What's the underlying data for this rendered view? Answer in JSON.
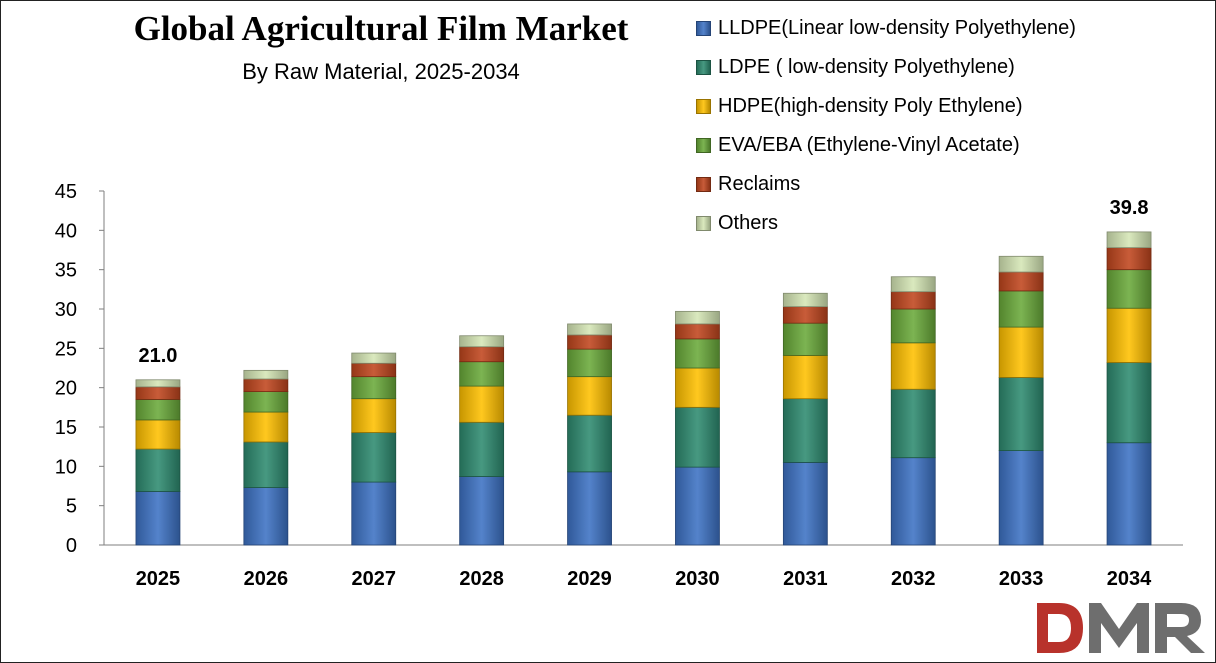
{
  "chart_data": {
    "type": "bar",
    "stacked": true,
    "title": "Global Agricultural Film Market",
    "subtitle": "By Raw Material, 2025-2034",
    "categories": [
      "2025",
      "2026",
      "2027",
      "2028",
      "2029",
      "2030",
      "2031",
      "2032",
      "2033",
      "2034"
    ],
    "ylim": [
      0,
      45
    ],
    "yticks": [
      0,
      5,
      10,
      15,
      20,
      25,
      30,
      35,
      40,
      45
    ],
    "series": [
      {
        "name": "LLDPE(Linear low-density Polyethylene)",
        "color": "#3d72c4",
        "values": [
          6.8,
          7.3,
          8.0,
          8.7,
          9.3,
          9.9,
          10.5,
          11.1,
          12.0,
          13.0
        ]
      },
      {
        "name": "LDPE ( low-density Polyethylene)",
        "color": "#2e8b70",
        "values": [
          5.4,
          5.8,
          6.3,
          6.9,
          7.2,
          7.6,
          8.1,
          8.7,
          9.3,
          10.2
        ]
      },
      {
        "name": "HDPE(high-density Poly Ethylene)",
        "color": "#ffc000",
        "values": [
          3.7,
          3.8,
          4.3,
          4.6,
          4.9,
          5.0,
          5.5,
          5.9,
          6.4,
          6.9
        ]
      },
      {
        "name": "EVA/EBA (Ethylene-Vinyl Acetate)",
        "color": "#6aaa3a",
        "values": [
          2.6,
          2.6,
          2.8,
          3.1,
          3.5,
          3.7,
          4.1,
          4.3,
          4.6,
          4.9
        ]
      },
      {
        "name": "Reclaims",
        "color": "#c0461e",
        "values": [
          1.6,
          1.6,
          1.7,
          1.9,
          1.8,
          1.9,
          2.1,
          2.2,
          2.4,
          2.8
        ]
      },
      {
        "name": "Others",
        "color": "#d5e6b5",
        "values": [
          0.9,
          1.1,
          1.3,
          1.4,
          1.4,
          1.6,
          1.7,
          1.9,
          2.0,
          2.0
        ]
      }
    ],
    "total_labels": [
      {
        "category": "2025",
        "value": "21.0"
      },
      {
        "category": "2034",
        "value": "39.8"
      }
    ],
    "legend_position": "top-right",
    "grid": false
  },
  "logo": {
    "text": "DMR"
  }
}
